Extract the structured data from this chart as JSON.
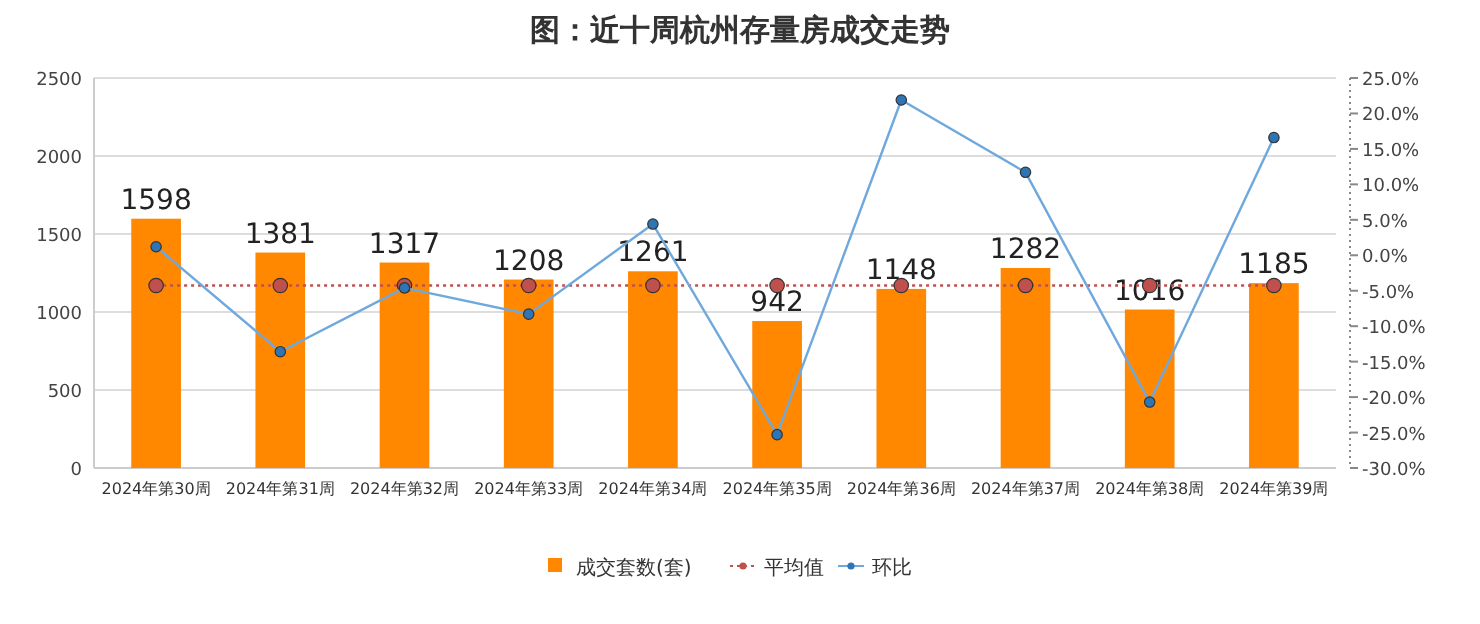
{
  "chart_data": {
    "type": "bar",
    "title": "图：近十周杭州存量房成交走势",
    "categories": [
      "2024年第30周",
      "2024年第31周",
      "2024年第32周",
      "2024年第33周",
      "2024年第34周",
      "2024年第35周",
      "2024年第36周",
      "2024年第37周",
      "2024年第38周",
      "2024年第39周"
    ],
    "series": [
      {
        "name": "成交套数(套)",
        "color": "#ff8800",
        "values": [
          1598,
          1381,
          1317,
          1208,
          1261,
          942,
          1148,
          1282,
          1016,
          1185
        ],
        "value_labels": [
          "1598",
          "1381",
          "1317",
          "1208",
          "1261",
          "942",
          "1148",
          "1282",
          "1016",
          "1185"
        ]
      },
      {
        "name": "平均值",
        "type": "line",
        "color": "#c0504d",
        "line_style": "dotted",
        "marker": "circle",
        "values": [
          1170,
          1170,
          1170,
          1170,
          1170,
          1170,
          1170,
          1170,
          1170,
          1170
        ]
      },
      {
        "name": "环比",
        "type": "line",
        "axis": "y2",
        "color": "#6fa8dc",
        "line_style": "solid",
        "marker": "circle",
        "values": [
          1.2,
          -13.6,
          -4.6,
          -8.3,
          4.4,
          -25.3,
          21.9,
          11.7,
          -20.7,
          16.6
        ]
      }
    ],
    "ylim": [
      0,
      2500
    ],
    "yticks": [
      0,
      500,
      1000,
      1500,
      2000,
      2500
    ],
    "y2lim": [
      -30,
      25
    ],
    "y2ticks": [
      {
        "value": 25,
        "label": "25.0%"
      },
      {
        "value": 20,
        "label": "20.0%"
      },
      {
        "value": 15,
        "label": "15.0%"
      },
      {
        "value": 10,
        "label": "10.0%"
      },
      {
        "value": 5,
        "label": "5.0%"
      },
      {
        "value": 0,
        "label": "0.0%"
      },
      {
        "value": -5,
        "label": "-5.0%"
      },
      {
        "value": -10,
        "label": "-10.0%"
      },
      {
        "value": -15,
        "label": "-15.0%"
      },
      {
        "value": -20,
        "label": "-20.0%"
      },
      {
        "value": -25,
        "label": "-25.0%"
      },
      {
        "value": -30,
        "label": "-30.0%"
      }
    ],
    "grid": "y",
    "legend": "bottom"
  }
}
